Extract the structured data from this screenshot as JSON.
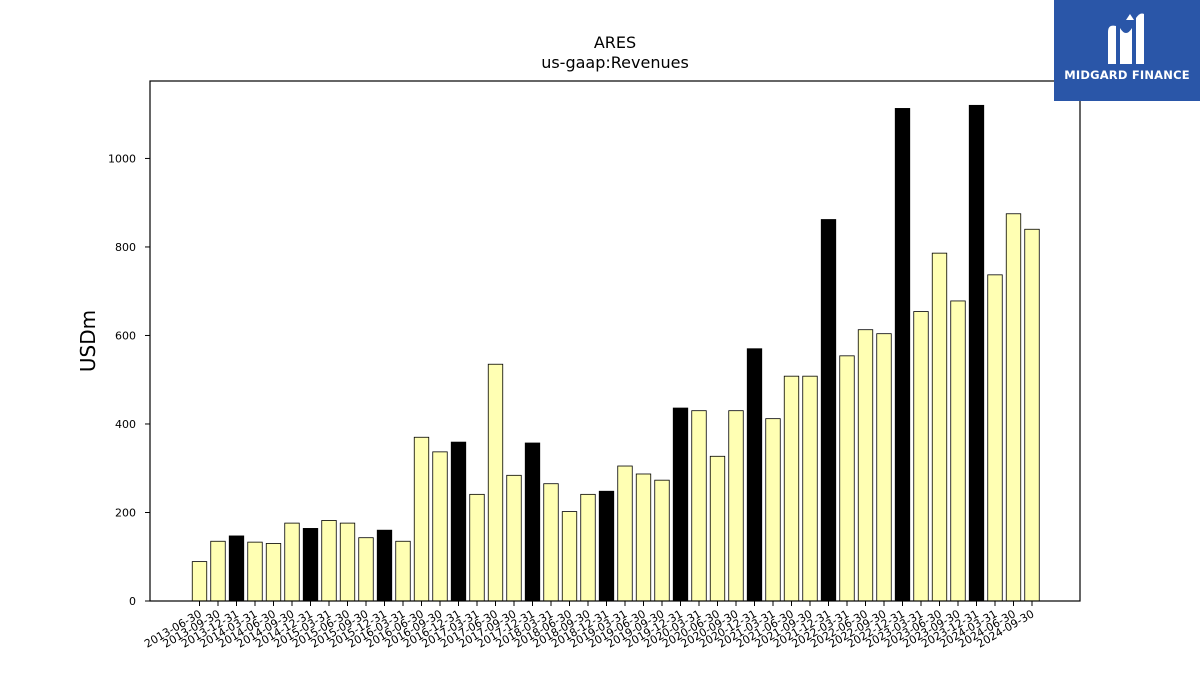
{
  "chart_data": {
    "type": "bar",
    "title": "ARES",
    "subtitle": "us-gaap:Revenues",
    "xlabel": "",
    "ylabel": "USDm",
    "ylim": [
      0,
      1175
    ],
    "yticks": [
      0,
      200,
      400,
      600,
      800,
      1000
    ],
    "grid": false,
    "colors": {
      "quarter": "#ffffb3",
      "year_end": "#000000",
      "edge": "#000000"
    },
    "categories": [
      "2013-06-30",
      "2013-09-30",
      "2013-12-31",
      "2014-03-31",
      "2014-06-30",
      "2014-09-30",
      "2014-12-31",
      "2015-03-31",
      "2015-06-30",
      "2015-09-30",
      "2015-12-31",
      "2016-03-31",
      "2016-06-30",
      "2016-09-30",
      "2016-12-31",
      "2017-03-31",
      "2017-06-30",
      "2017-09-30",
      "2017-12-31",
      "2018-03-31",
      "2018-06-30",
      "2018-09-30",
      "2018-12-31",
      "2019-03-31",
      "2019-06-30",
      "2019-09-30",
      "2019-12-31",
      "2020-03-31",
      "2020-06-30",
      "2020-09-30",
      "2020-12-31",
      "2021-03-31",
      "2021-06-30",
      "2021-09-30",
      "2021-12-31",
      "2022-03-31",
      "2022-06-30",
      "2022-09-30",
      "2022-12-31",
      "2023-03-31",
      "2023-06-30",
      "2023-09-30",
      "2023-12-31",
      "2024-03-31",
      "2024-06-30",
      "2024-09-30"
    ],
    "values": [
      89,
      135,
      147,
      133,
      130,
      176,
      164,
      182,
      176,
      143,
      160,
      135,
      370,
      337,
      359,
      241,
      535,
      284,
      357,
      265,
      202,
      241,
      248,
      305,
      287,
      273,
      436,
      430,
      327,
      430,
      570,
      412,
      508,
      508,
      862,
      554,
      613,
      604,
      1113,
      654,
      786,
      678,
      1120,
      737,
      875,
      840
    ],
    "highlight": [
      false,
      false,
      true,
      false,
      false,
      false,
      true,
      false,
      false,
      false,
      true,
      false,
      false,
      false,
      true,
      false,
      false,
      false,
      true,
      false,
      false,
      false,
      true,
      false,
      false,
      false,
      true,
      false,
      false,
      false,
      true,
      false,
      false,
      false,
      true,
      false,
      false,
      false,
      true,
      false,
      false,
      false,
      true,
      false,
      false,
      false
    ]
  },
  "logo": {
    "text": "MIDGARD FINANCE"
  }
}
